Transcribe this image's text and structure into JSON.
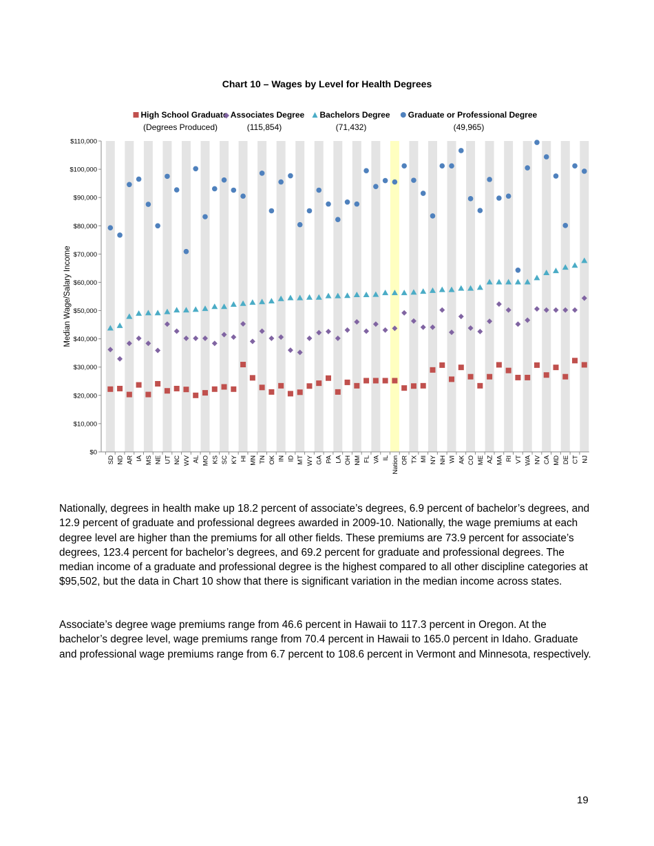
{
  "chart_data": {
    "type": "scatter",
    "title": "Chart 10 – Wages by Level for Health Degrees",
    "ylabel": "Median Wage/Salary Income",
    "xlabel": "",
    "ylim": [
      0,
      110000
    ],
    "y_ticks": [
      "$0",
      "$10,000",
      "$20,000",
      "$30,000",
      "$40,000",
      "$50,000",
      "$60,000",
      "$70,000",
      "$80,000",
      "$90,000",
      "$100,000",
      "$110,000"
    ],
    "legend_position": "top",
    "highlight_category": "Nation",
    "highlight_color": "#ffffc0",
    "band_color": "#e4e4e4",
    "categories": [
      "SD",
      "ND",
      "AR",
      "IA",
      "MS",
      "NE",
      "UT",
      "NC",
      "WV",
      "AL",
      "MO",
      "KS",
      "SC",
      "KY",
      "HI",
      "MN",
      "TN",
      "OK",
      "IN",
      "ID",
      "MT",
      "WY",
      "GA",
      "PA",
      "LA",
      "OH",
      "NM",
      "FL",
      "VA",
      "IL",
      "Nation",
      "OR",
      "TX",
      "MI",
      "NY",
      "NH",
      "WI",
      "AK",
      "CO",
      "ME",
      "AZ",
      "MA",
      "RI",
      "VT",
      "WA",
      "NV",
      "CA",
      "MD",
      "DE",
      "CT",
      "NJ"
    ],
    "series": [
      {
        "name": "High School Graduate",
        "sublabel": "(Degrees Produced)",
        "marker": "square",
        "color": "#c0504d",
        "values": [
          22200,
          22400,
          20300,
          23700,
          20300,
          24100,
          21600,
          22400,
          22100,
          20000,
          20900,
          22200,
          23000,
          22200,
          30900,
          26200,
          22800,
          21200,
          23400,
          20600,
          21100,
          23300,
          24300,
          26100,
          21200,
          24600,
          23400,
          25200,
          25200,
          25200,
          25200,
          22600,
          23300,
          23400,
          29000,
          30700,
          25700,
          29900,
          26600,
          23400,
          26600,
          30800,
          28800,
          26300,
          26300,
          30700,
          27200,
          29900,
          26600,
          32300,
          30800
        ]
      },
      {
        "name": "Associates Degree",
        "sublabel": "(115,854)",
        "marker": "diamond",
        "color": "#8064a2",
        "values": [
          36200,
          32900,
          38400,
          40200,
          38400,
          35900,
          45200,
          42700,
          40200,
          40200,
          40200,
          38400,
          41500,
          40600,
          45300,
          39100,
          42700,
          40200,
          40600,
          36000,
          35200,
          40200,
          42200,
          42600,
          40200,
          43100,
          46000,
          42700,
          45200,
          43100,
          43700,
          49200,
          46300,
          44100,
          44100,
          50200,
          42300,
          47900,
          43800,
          42600,
          46200,
          52300,
          50200,
          45200,
          46600,
          50600,
          50200,
          50200,
          50200,
          50200,
          54400
        ]
      },
      {
        "name": "Bachelors Degree",
        "sublabel": "(71,432)",
        "marker": "triangle",
        "color": "#4bacc6",
        "values": [
          43800,
          44700,
          47900,
          49000,
          49200,
          49200,
          49600,
          50200,
          50200,
          50400,
          50700,
          51400,
          51400,
          52200,
          52500,
          52900,
          53100,
          53400,
          54200,
          54500,
          54500,
          54700,
          54700,
          55200,
          55200,
          55300,
          55600,
          55600,
          55700,
          56300,
          56300,
          56300,
          56500,
          56800,
          57100,
          57400,
          57400,
          57900,
          57900,
          58200,
          60100,
          60100,
          60100,
          60100,
          60100,
          61600,
          63400,
          64100,
          65300,
          66000,
          67700
        ]
      },
      {
        "name": "Graduate or Professional Degree",
        "sublabel": "(49,965)",
        "marker": "circle",
        "color": "#4f81bd",
        "values": [
          79300,
          76700,
          94600,
          96500,
          87600,
          80000,
          97500,
          92700,
          70900,
          100200,
          83200,
          93100,
          96200,
          92600,
          90500,
          null,
          98600,
          85300,
          95500,
          97700,
          80400,
          85300,
          92600,
          87700,
          82200,
          88400,
          87700,
          99500,
          93900,
          96000,
          95500,
          101200,
          96100,
          91500,
          83500,
          101200,
          101200,
          106600,
          89600,
          85400,
          96400,
          89800,
          90500,
          64300,
          100500,
          109500,
          104400,
          97600,
          80100,
          101200,
          99300
        ]
      }
    ]
  },
  "body": {
    "paragraph_1": "Nationally, degrees in health make up 18.2 percent of associate’s degrees, 6.9 percent of bachelor’s degrees, and 12.9 percent of graduate and professional degrees awarded in 2009-10. Nationally, the wage premiums at each degree level are higher than the premiums for all other fields. These premiums are 73.9 percent for associate’s degrees, 123.4 percent for bachelor’s degrees, and 69.2 percent for graduate and professional degrees. The median income of a graduate and professional degree is the highest compared to all other discipline categories at $95,502, but the data in Chart 10 show that there is significant variation in the median income across states.",
    "paragraph_2": "Associate’s degree wage premiums range from 46.6 percent in Hawaii to 117.3 percent in Oregon. At the bachelor’s degree level, wage premiums range from 70.4 percent in Hawaii to 165.0 percent in Idaho. Graduate and professional wage premiums range from 6.7 percent to 108.6 percent in Vermont and Minnesota, respectively."
  },
  "page_number": "19"
}
